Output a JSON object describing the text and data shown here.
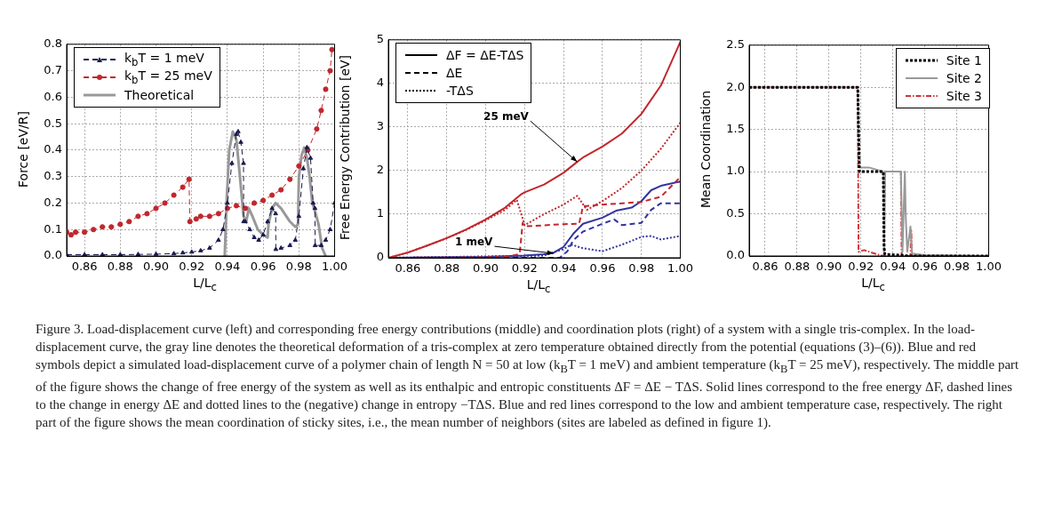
{
  "chart_data": [
    {
      "type": "line",
      "xlabel": "L/L$_{c}$",
      "ylabel": "Force [eV/R]",
      "xlim": [
        0.85,
        1.0
      ],
      "xticks": [
        {
          "value": 0.86,
          "label": "0.86"
        },
        {
          "value": 0.88,
          "label": "0.88"
        },
        {
          "value": 0.9,
          "label": "0.90"
        },
        {
          "value": 0.92,
          "label": "0.92"
        },
        {
          "value": 0.94,
          "label": "0.94"
        },
        {
          "value": 0.96,
          "label": "0.96"
        },
        {
          "value": 0.98,
          "label": "0.98"
        },
        {
          "value": 1.0,
          "label": "1.00"
        }
      ],
      "ylim": [
        0,
        0.8
      ],
      "yticks": [
        {
          "value": 0,
          "label": "0.0"
        },
        0.1,
        0.2,
        0.3,
        0.4,
        0.5,
        0.6,
        0.7,
        0.8
      ],
      "grid": true,
      "legend": "top left",
      "series": [
        {
          "name": "k$_{b}$T = 1 meV",
          "color": "#1a1a4e",
          "marker": "triangle",
          "line_style": "dashed",
          "x": [
            0.85,
            0.86,
            0.87,
            0.88,
            0.89,
            0.9,
            0.91,
            0.915,
            0.92,
            0.925,
            0.93,
            0.935,
            0.9375,
            0.94,
            0.9425,
            0.945,
            0.946,
            0.9475,
            0.949,
            0.9491,
            0.95,
            0.9525,
            0.955,
            0.9575,
            0.96,
            0.9625,
            0.965,
            0.967,
            0.9671,
            0.97,
            0.975,
            0.978,
            0.98,
            0.9825,
            0.9845,
            0.9865,
            0.988,
            0.989,
            0.9891,
            0.9925,
            0.995,
            0.9975,
            1.0
          ],
          "values": [
            0.005,
            0.005,
            0.005,
            0.005,
            0.006,
            0.007,
            0.009,
            0.012,
            0.015,
            0.02,
            0.03,
            0.06,
            0.1,
            0.2,
            0.35,
            0.46,
            0.47,
            0.43,
            0.35,
            0.13,
            0.13,
            0.1,
            0.07,
            0.06,
            0.08,
            0.13,
            0.18,
            0.16,
            0.025,
            0.03,
            0.04,
            0.06,
            0.15,
            0.33,
            0.41,
            0.37,
            0.2,
            0.18,
            0.04,
            0.04,
            0.06,
            0.1,
            0.2
          ]
        },
        {
          "name": "k$_{b}$T = 25 meV",
          "color": "#c0272d",
          "marker": "circle",
          "line_style": "dashed",
          "x": [
            0.85,
            0.8525,
            0.855,
            0.86,
            0.865,
            0.87,
            0.875,
            0.88,
            0.885,
            0.89,
            0.895,
            0.9,
            0.905,
            0.91,
            0.915,
            0.9185,
            0.919,
            0.9225,
            0.925,
            0.93,
            0.935,
            0.94,
            0.945,
            0.95,
            0.955,
            0.96,
            0.965,
            0.97,
            0.975,
            0.98,
            0.985,
            0.99,
            0.9925,
            0.995,
            0.9975,
            0.9985
          ],
          "values": [
            0.09,
            0.08,
            0.09,
            0.09,
            0.1,
            0.11,
            0.11,
            0.12,
            0.13,
            0.15,
            0.16,
            0.18,
            0.2,
            0.23,
            0.26,
            0.29,
            0.13,
            0.14,
            0.15,
            0.15,
            0.16,
            0.18,
            0.19,
            0.18,
            0.2,
            0.21,
            0.23,
            0.25,
            0.29,
            0.34,
            0.4,
            0.48,
            0.55,
            0.63,
            0.7,
            0.78
          ]
        },
        {
          "name": "Theoretical",
          "color": "#999999",
          "marker": "none",
          "line_style": "solid",
          "x": [
            0.9385,
            0.9395,
            0.941,
            0.943,
            0.945,
            0.947,
            0.949,
            0.9505,
            0.952,
            0.954,
            0.957,
            0.96,
            0.9625,
            0.963,
            0.965,
            0.967,
            0.97,
            0.975,
            0.978,
            0.9795,
            0.98,
            0.9815,
            0.983,
            0.9845,
            0.986,
            0.9875,
            0.989,
            0.991,
            0.993,
            0.995
          ],
          "values": [
            0,
            0.2,
            0.4,
            0.47,
            0.44,
            0.3,
            0.15,
            0.13,
            0.18,
            0.15,
            0.1,
            0.08,
            0.07,
            0.12,
            0.18,
            0.2,
            0.18,
            0.13,
            0.11,
            0.12,
            0.3,
            0.38,
            0.41,
            0.37,
            0.3,
            0.2,
            0.17,
            0.12,
            0.03,
            0
          ]
        }
      ]
    },
    {
      "type": "line",
      "xlabel": "L/L$_{c}$",
      "ylabel": "Free Energy Contribution [eV]",
      "xlim": [
        0.85,
        1.0
      ],
      "xticks": [
        {
          "value": 0.86,
          "label": "0.86"
        },
        {
          "value": 0.88,
          "label": "0.88"
        },
        {
          "value": 0.9,
          "label": "0.90"
        },
        {
          "value": 0.92,
          "label": "0.92"
        },
        {
          "value": 0.94,
          "label": "0.94"
        },
        {
          "value": 0.96,
          "label": "0.96"
        },
        {
          "value": 0.98,
          "label": "0.98"
        },
        {
          "value": 1.0,
          "label": "1.00"
        }
      ],
      "ylim": [
        0,
        5
      ],
      "yticks": [
        0,
        1,
        2,
        3,
        4,
        5
      ],
      "grid": true,
      "legend": "top left",
      "annotations": [
        {
          "text": "25 meV",
          "x": 0.947,
          "y": 2.2
        },
        {
          "text": "1 meV",
          "x": 0.935,
          "y": 0.1
        }
      ],
      "series": [
        {
          "name": "ΔF = ΔE-TΔS",
          "color": "#000000",
          "line_style": "solid"
        },
        {
          "name": "ΔE",
          "color": "#000000",
          "line_style": "dashed"
        },
        {
          "name": "-TΔS",
          "color": "#000000",
          "line_style": "dotted"
        },
        {
          "color": "#c0272d",
          "line_style": "solid",
          "x": [
            0.85,
            0.86,
            0.87,
            0.88,
            0.89,
            0.9,
            0.91,
            0.918,
            0.92,
            0.93,
            0.94,
            0.947,
            0.95,
            0.96,
            0.97,
            0.98,
            0.99,
            1.0
          ],
          "values": [
            0,
            0.12,
            0.28,
            0.45,
            0.65,
            0.88,
            1.15,
            1.45,
            1.5,
            1.68,
            1.95,
            2.2,
            2.3,
            2.55,
            2.85,
            3.3,
            3.95,
            4.95
          ]
        },
        {
          "color": "#c0272d",
          "line_style": "dashed",
          "x": [
            0.85,
            0.9,
            0.91,
            0.917,
            0.9175,
            0.919,
            0.92,
            0.94,
            0.948,
            0.95,
            0.96,
            0.98,
            0.99,
            1.0
          ],
          "values": [
            0,
            0.01,
            0.02,
            0.08,
            0.1,
            0.8,
            0.72,
            0.77,
            0.78,
            1.18,
            1.22,
            1.28,
            1.4,
            1.85
          ]
        },
        {
          "color": "#c0272d",
          "line_style": "dotted",
          "x": [
            0.85,
            0.86,
            0.87,
            0.88,
            0.89,
            0.9,
            0.91,
            0.916,
            0.92,
            0.93,
            0.94,
            0.947,
            0.952,
            0.96,
            0.97,
            0.98,
            0.99,
            1.0
          ],
          "values": [
            0,
            0.12,
            0.28,
            0.45,
            0.64,
            0.86,
            1.1,
            1.33,
            0.75,
            1.0,
            1.22,
            1.42,
            1.1,
            1.3,
            1.6,
            2.0,
            2.5,
            3.1
          ]
        },
        {
          "color": "#3333a0",
          "line_style": "solid",
          "x": [
            0.85,
            0.9,
            0.92,
            0.93,
            0.935,
            0.94,
            0.945,
            0.95,
            0.96,
            0.967,
            0.975,
            0.98,
            0.985,
            0.99,
            1.0
          ],
          "values": [
            0,
            0.02,
            0.05,
            0.08,
            0.12,
            0.25,
            0.55,
            0.78,
            0.92,
            1.08,
            1.15,
            1.3,
            1.55,
            1.65,
            1.75
          ]
        },
        {
          "color": "#3333a0",
          "line_style": "dashed",
          "x": [
            0.85,
            0.938,
            0.942,
            0.945,
            0.95,
            0.96,
            0.966,
            0.97,
            0.98,
            0.985,
            0.99,
            1.0
          ],
          "values": [
            0,
            0,
            0.15,
            0.4,
            0.6,
            0.78,
            0.88,
            0.75,
            0.8,
            1.1,
            1.25,
            1.25
          ]
        },
        {
          "color": "#3333a0",
          "line_style": "dotted",
          "x": [
            0.85,
            0.93,
            0.94,
            0.944,
            0.95,
            0.96,
            0.97,
            0.98,
            0.985,
            0.99,
            1.0
          ],
          "values": [
            0,
            0.05,
            0.2,
            0.3,
            0.22,
            0.15,
            0.3,
            0.48,
            0.5,
            0.42,
            0.5
          ]
        }
      ]
    },
    {
      "type": "line",
      "xlabel": "L/L$_{c}$",
      "ylabel": "Mean Coordination",
      "xlim": [
        0.85,
        1.0
      ],
      "xticks": [
        {
          "value": 0.86,
          "label": "0.86"
        },
        {
          "value": 0.88,
          "label": "0.88"
        },
        {
          "value": 0.9,
          "label": "0.90"
        },
        {
          "value": 0.92,
          "label": "0.92"
        },
        {
          "value": 0.94,
          "label": "0.94"
        },
        {
          "value": 0.96,
          "label": "0.96"
        },
        {
          "value": 0.98,
          "label": "0.98"
        },
        {
          "value": 1.0,
          "label": "1.00"
        }
      ],
      "ylim": [
        0,
        2.5
      ],
      "yticks": [
        {
          "value": 0,
          "label": "0.0"
        },
        0.5,
        {
          "value": 1,
          "label": "1.0"
        },
        1.5,
        {
          "value": 2,
          "label": "2.0"
        },
        2.5
      ],
      "grid": true,
      "legend": "top right",
      "series": [
        {
          "name": "Site 1",
          "color": "#000000",
          "line_style": "dotted",
          "x": [
            0.85,
            0.918,
            0.919,
            0.934,
            0.9345,
            0.935,
            0.945,
            0.95,
            1.0
          ],
          "values": [
            2,
            2,
            1,
            1,
            0.1,
            0.02,
            0.01,
            0,
            0
          ]
        },
        {
          "name": "Site 2",
          "color": "#999999",
          "line_style": "solid",
          "x": [
            0.85,
            0.918,
            0.919,
            0.925,
            0.934,
            0.9345,
            0.935,
            0.945,
            0.946,
            0.9475,
            0.948,
            0.949,
            0.951,
            0.952,
            0.96,
            1.0
          ],
          "values": [
            2,
            2,
            1.05,
            1.05,
            1,
            0,
            1,
            1,
            0.05,
            1,
            0.5,
            0.05,
            0.35,
            0.03,
            0.01,
            0
          ]
        },
        {
          "name": "Site 3",
          "color": "#d0353a",
          "line_style": "dashed",
          "x": [
            0.85,
            0.918,
            0.9185,
            0.922,
            0.93,
            0.9345,
            0.935,
            0.945,
            0.9455,
            0.951,
            0.9515,
            0.952,
            1.0
          ],
          "values": [
            2,
            2,
            0.05,
            0.07,
            0.02,
            0,
            1,
            1,
            0,
            0,
            0.3,
            0,
            0
          ]
        }
      ]
    },
    {
      "type": "other",
      "annotations": [
        "Figure 3. Load-displacement curve (left) and corresponding free energy contributions (middle) and coordination plots (right) of a system with a single tris-complex. In the load-displacement curve, the gray line denotes the theoretical deformation of a tris-complex at zero temperature obtained directly from the potential (equations (3)–(6)). Blue and red symbols depict a simulated load-displacement curve of a polymer chain of length N = 50 at low (k$_{B}$T = 1 meV) and ambient temperature (k$_{B}$T = 25 meV), respectively. The middle part of the figure shows the change of free energy of the system as well as its enthalpic and entropic constituents ΔF = ΔE − TΔS. Solid lines correspond to the free energy ΔF, dashed lines to the change in energy ΔE and dotted lines to the (negative) change in entropy −TΔS. Blue and red lines correspond to the low and ambient temperature case, respectively. The right part of the figure shows the mean coordination of sticky sites, i.e., the mean number of neighbors (sites are labeled as defined in figure 1)."
      ]
    }
  ]
}
